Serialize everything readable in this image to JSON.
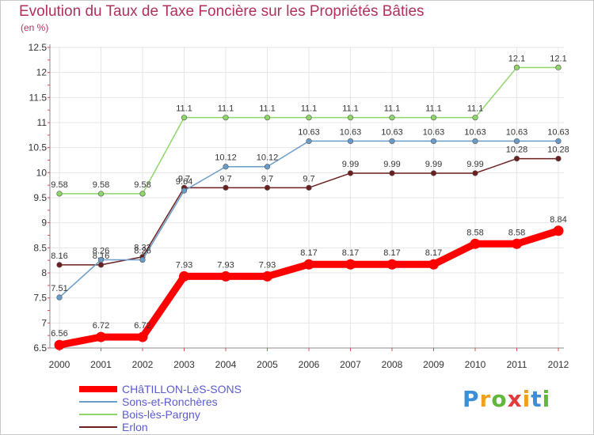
{
  "chart_data": {
    "type": "line",
    "title": "Evolution du Taux de Taxe Foncière sur les Propriétés Bâties",
    "unit_label": "(en %)",
    "x": [
      "2000",
      "2001",
      "2002",
      "2003",
      "2004",
      "2005",
      "2006",
      "2007",
      "2008",
      "2009",
      "2010",
      "2011",
      "2012"
    ],
    "ylim": [
      6.5,
      12.5
    ],
    "yticks": [
      "6.5",
      "7",
      "7.5",
      "8",
      "8.5",
      "9",
      "9.5",
      "10",
      "10.5",
      "11",
      "11.5",
      "12",
      "12.5"
    ],
    "series": [
      {
        "name": "Erlon",
        "color": "#6b1f1f",
        "values": [
          8.16,
          8.16,
          8.32,
          9.7,
          9.7,
          9.7,
          9.7,
          9.99,
          9.99,
          9.99,
          9.99,
          10.28,
          10.28
        ],
        "labels": [
          "8.16",
          "8.16",
          "8.32",
          "9.7",
          "9.7",
          "9.7",
          "9.7",
          "9.99",
          "9.99",
          "9.99",
          "9.99",
          "10.28",
          "10.28"
        ]
      },
      {
        "name": "Bois-lès-Pargny",
        "color": "#8ed66a",
        "values": [
          9.58,
          9.58,
          9.58,
          11.1,
          11.1,
          11.1,
          11.1,
          11.1,
          11.1,
          11.1,
          11.1,
          12.1,
          12.1
        ],
        "labels": [
          "9.58",
          "9.58",
          "9.58",
          "11.1",
          "11.1",
          "11.1",
          "11.1",
          "11.1",
          "11.1",
          "11.1",
          "11.1",
          "12.1",
          "12.1"
        ]
      },
      {
        "name": "Sons-et-Ronchères",
        "color": "#6a9cc9",
        "values": [
          7.51,
          8.26,
          8.26,
          9.64,
          10.12,
          10.12,
          10.63,
          10.63,
          10.63,
          10.63,
          10.63,
          10.63,
          10.63
        ],
        "labels": [
          "7.51",
          "8.26",
          "8.26",
          "9.64",
          "10.12",
          "10.12",
          "10.63",
          "10.63",
          "10.63",
          "10.63",
          "10.63",
          "10.63",
          "10.63"
        ]
      },
      {
        "name": "CHâTILLON-LèS-SONS",
        "color": "#ff0000",
        "values": [
          6.56,
          6.72,
          6.72,
          7.93,
          7.93,
          7.93,
          8.17,
          8.17,
          8.17,
          8.17,
          8.58,
          8.58,
          8.84
        ],
        "labels": [
          "6.56",
          "6.72",
          "6.72",
          "7.93",
          "7.93",
          "7.93",
          "8.17",
          "8.17",
          "8.17",
          "8.17",
          "8.58",
          "8.58",
          "8.84"
        ]
      }
    ]
  },
  "legend": [
    {
      "name": "CHâTILLON-LèS-SONS",
      "color": "#ff0000"
    },
    {
      "name": "Sons-et-Ronchères",
      "color": "#6a9cc9"
    },
    {
      "name": "Bois-lès-Pargny",
      "color": "#8ed66a"
    },
    {
      "name": "Erlon",
      "color": "#6b1f1f"
    }
  ],
  "logo": {
    "text": "Proxiti"
  }
}
